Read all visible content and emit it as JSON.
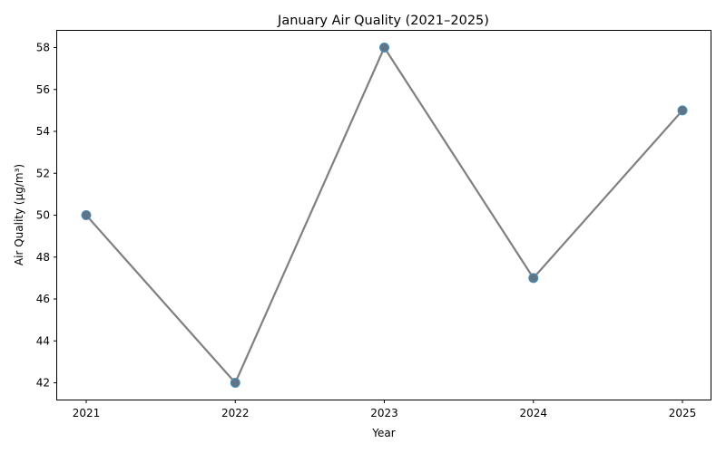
{
  "chart_data": {
    "type": "line",
    "title": "January Air Quality (2021–2025)",
    "xlabel": "Year",
    "ylabel": "Air Quality (µg/m³)",
    "categories": [
      "2021",
      "2022",
      "2023",
      "2024",
      "2025"
    ],
    "series": [
      {
        "values": [
          50,
          42,
          58,
          47,
          55
        ]
      }
    ],
    "ylim": [
      41.2,
      58.8
    ],
    "yticks": [
      42,
      44,
      46,
      48,
      50,
      52,
      54,
      56,
      58
    ],
    "grid": false,
    "legend": "none",
    "colors": {
      "line": "#808080",
      "marker_fill": "#5f7486",
      "marker_edge": "#4a90b8",
      "axes": "#000000"
    }
  }
}
